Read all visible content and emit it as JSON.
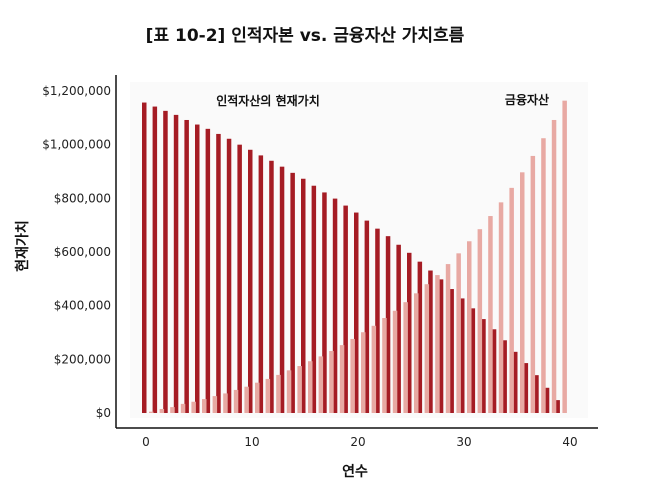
{
  "chart_data": {
    "type": "bar",
    "title": "[표 10-2] 인적자본 vs. 금융자산 가치흐름",
    "xlabel": "연수",
    "ylabel": "현재가치",
    "xlim": [
      0,
      40
    ],
    "ylim": [
      0,
      1200000
    ],
    "x_ticks": [
      "0",
      "10",
      "20",
      "30",
      "40"
    ],
    "y_ticks": [
      "$0",
      "$200,000",
      "$400,000",
      "$600,000",
      "$800,000",
      "$1,000,000",
      "$1,200,000"
    ],
    "grid": false,
    "x": [
      0,
      1,
      2,
      3,
      4,
      5,
      6,
      7,
      8,
      9,
      10,
      11,
      12,
      13,
      14,
      15,
      16,
      17,
      18,
      19,
      20,
      21,
      22,
      23,
      24,
      25,
      26,
      27,
      28,
      29,
      30,
      31,
      32,
      33,
      34,
      35,
      36,
      37,
      38,
      39
    ],
    "series": [
      {
        "name": "인적자산의 현재가치",
        "color": "#a51c24",
        "values": [
          1157000,
          1142000,
          1126000,
          1111000,
          1092000,
          1075000,
          1059000,
          1040000,
          1022000,
          1000000,
          981000,
          960000,
          940000,
          918000,
          895000,
          873000,
          847000,
          822000,
          799000,
          773000,
          747000,
          717000,
          687000,
          659000,
          627000,
          597000,
          564000,
          531000,
          498000,
          462000,
          427000,
          390000,
          350000,
          312000,
          271000,
          228000,
          186000,
          141000,
          94000,
          48000
        ]
      },
      {
        "name": "금융자산",
        "color": "#e8a9a3",
        "values": [
          5000,
          15000,
          22000,
          34000,
          42000,
          52000,
          63000,
          73000,
          86000,
          98000,
          113000,
          127000,
          142000,
          159000,
          175000,
          193000,
          211000,
          231000,
          253000,
          276000,
          301000,
          325000,
          354000,
          381000,
          413000,
          446000,
          480000,
          514000,
          555000,
          595000,
          640000,
          685000,
          734000,
          785000,
          839000,
          897000,
          958000,
          1024000,
          1092000,
          1164000
        ]
      }
    ]
  }
}
